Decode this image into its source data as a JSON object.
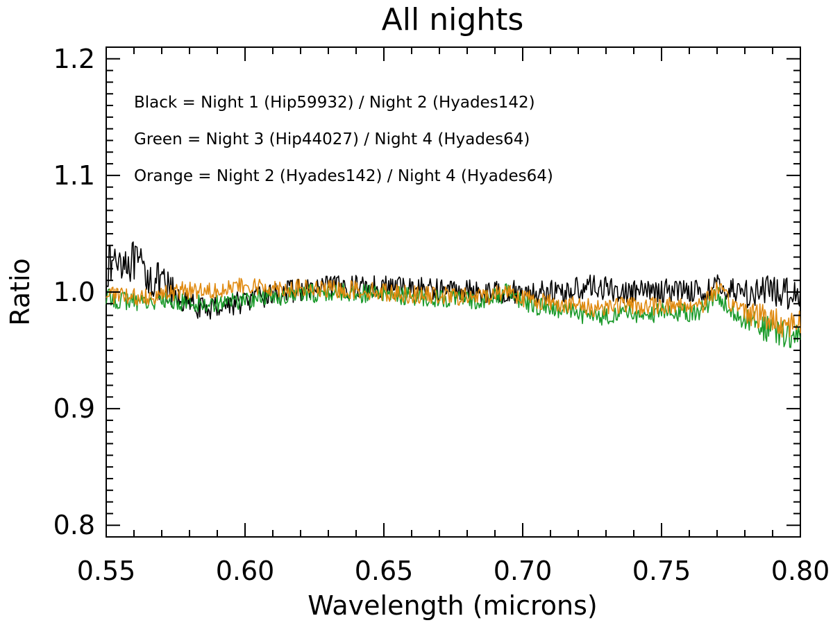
{
  "chart_data": {
    "type": "line",
    "title": "All nights",
    "xlabel": "Wavelength (microns)",
    "ylabel": "Ratio",
    "xlim": [
      0.55,
      0.8
    ],
    "ylim": [
      0.79,
      1.21
    ],
    "x_ticks": [
      0.55,
      0.6,
      0.65,
      0.7,
      0.75,
      0.8
    ],
    "x_tick_labels": [
      "0.55",
      "0.60",
      "0.65",
      "0.70",
      "0.75",
      "0.80"
    ],
    "y_ticks": [
      0.8,
      0.9,
      1.0,
      1.1,
      1.2
    ],
    "y_tick_labels": [
      "0.8",
      "0.9",
      "1.0",
      "1.1",
      "1.2"
    ],
    "grid": false,
    "legend_position": "top-left",
    "annotations": [
      "Black = Night 1 (Hip59932) / Night 2 (Hyades142)",
      "Green = Night 3 (Hip44027) / Night 4 (Hyades64)",
      "Orange = Night 2 (Hyades142) / Night 4 (Hyades64)"
    ],
    "series": [
      {
        "name": "Night 1 (Hip59932) / Night 2 (Hyades142)",
        "color": "#000000",
        "x": [
          0.55,
          0.555,
          0.56,
          0.565,
          0.57,
          0.575,
          0.58,
          0.585,
          0.59,
          0.595,
          0.6,
          0.605,
          0.61,
          0.615,
          0.62,
          0.625,
          0.63,
          0.635,
          0.64,
          0.645,
          0.65,
          0.655,
          0.66,
          0.665,
          0.67,
          0.675,
          0.68,
          0.685,
          0.69,
          0.695,
          0.7,
          0.705,
          0.71,
          0.715,
          0.72,
          0.725,
          0.73,
          0.735,
          0.74,
          0.745,
          0.75,
          0.755,
          0.76,
          0.765,
          0.77,
          0.775,
          0.78,
          0.785,
          0.79,
          0.795,
          0.8
        ],
        "y": [
          1.02,
          1.03,
          1.025,
          1.015,
          1.005,
          0.995,
          0.99,
          0.985,
          0.988,
          0.99,
          0.992,
          0.995,
          0.998,
          1.0,
          1.002,
          1.002,
          1.004,
          1.004,
          1.005,
          1.005,
          1.005,
          1.004,
          1.004,
          1.003,
          1.002,
          1.002,
          1.001,
          1.0,
          1.0,
          1.0,
          1.0,
          1.0,
          1.0,
          1.0,
          1.003,
          1.005,
          1.003,
          1.0,
          1.0,
          1.0,
          1.001,
          1.002,
          1.002,
          1.0,
          1.005,
          1.002,
          1.0,
          1.0,
          1.0,
          1.0,
          1.0
        ]
      },
      {
        "name": "Night 3 (Hip44027) / Night 4 (Hyades64)",
        "color": "#1a9a2a",
        "x": [
          0.55,
          0.555,
          0.56,
          0.565,
          0.57,
          0.575,
          0.58,
          0.585,
          0.59,
          0.595,
          0.6,
          0.605,
          0.61,
          0.615,
          0.62,
          0.625,
          0.63,
          0.635,
          0.64,
          0.645,
          0.65,
          0.655,
          0.66,
          0.665,
          0.67,
          0.675,
          0.68,
          0.685,
          0.69,
          0.695,
          0.7,
          0.705,
          0.71,
          0.715,
          0.72,
          0.725,
          0.73,
          0.735,
          0.74,
          0.745,
          0.75,
          0.755,
          0.76,
          0.765,
          0.77,
          0.775,
          0.78,
          0.785,
          0.79,
          0.795,
          0.8
        ],
        "y": [
          0.995,
          0.993,
          0.992,
          0.992,
          0.992,
          0.991,
          0.991,
          0.99,
          0.991,
          0.992,
          0.993,
          0.995,
          0.996,
          0.997,
          0.998,
          0.999,
          0.999,
          1.0,
          0.999,
          0.998,
          0.998,
          0.997,
          0.996,
          0.995,
          0.995,
          0.994,
          0.993,
          0.993,
          0.996,
          1.0,
          0.99,
          0.988,
          0.986,
          0.984,
          0.982,
          0.978,
          0.98,
          0.982,
          0.981,
          0.98,
          0.983,
          0.982,
          0.982,
          0.985,
          1.0,
          0.982,
          0.976,
          0.971,
          0.966,
          0.962,
          0.965
        ]
      },
      {
        "name": "Night 2 (Hyades142) / Night 4 (Hyades64)",
        "color": "#e08a10",
        "x": [
          0.55,
          0.555,
          0.56,
          0.565,
          0.57,
          0.575,
          0.58,
          0.585,
          0.59,
          0.595,
          0.6,
          0.605,
          0.61,
          0.615,
          0.62,
          0.625,
          0.63,
          0.635,
          0.64,
          0.645,
          0.65,
          0.655,
          0.66,
          0.665,
          0.67,
          0.675,
          0.68,
          0.685,
          0.69,
          0.695,
          0.7,
          0.705,
          0.71,
          0.715,
          0.72,
          0.725,
          0.73,
          0.735,
          0.74,
          0.745,
          0.75,
          0.755,
          0.76,
          0.765,
          0.77,
          0.775,
          0.78,
          0.785,
          0.79,
          0.795,
          0.8
        ],
        "y": [
          1.0,
          0.996,
          0.995,
          0.997,
          0.998,
          1.0,
          1.002,
          1.002,
          1.003,
          1.004,
          1.004,
          1.004,
          1.004,
          1.003,
          1.003,
          1.002,
          1.002,
          1.002,
          1.002,
          1.001,
          1.0,
          0.999,
          0.998,
          0.997,
          0.997,
          0.996,
          0.996,
          0.996,
          0.998,
          1.002,
          0.995,
          0.993,
          0.991,
          0.99,
          0.988,
          0.986,
          0.988,
          0.989,
          0.988,
          0.987,
          0.989,
          0.988,
          0.989,
          0.99,
          1.003,
          0.99,
          0.985,
          0.98,
          0.976,
          0.972,
          0.975
        ]
      }
    ]
  }
}
